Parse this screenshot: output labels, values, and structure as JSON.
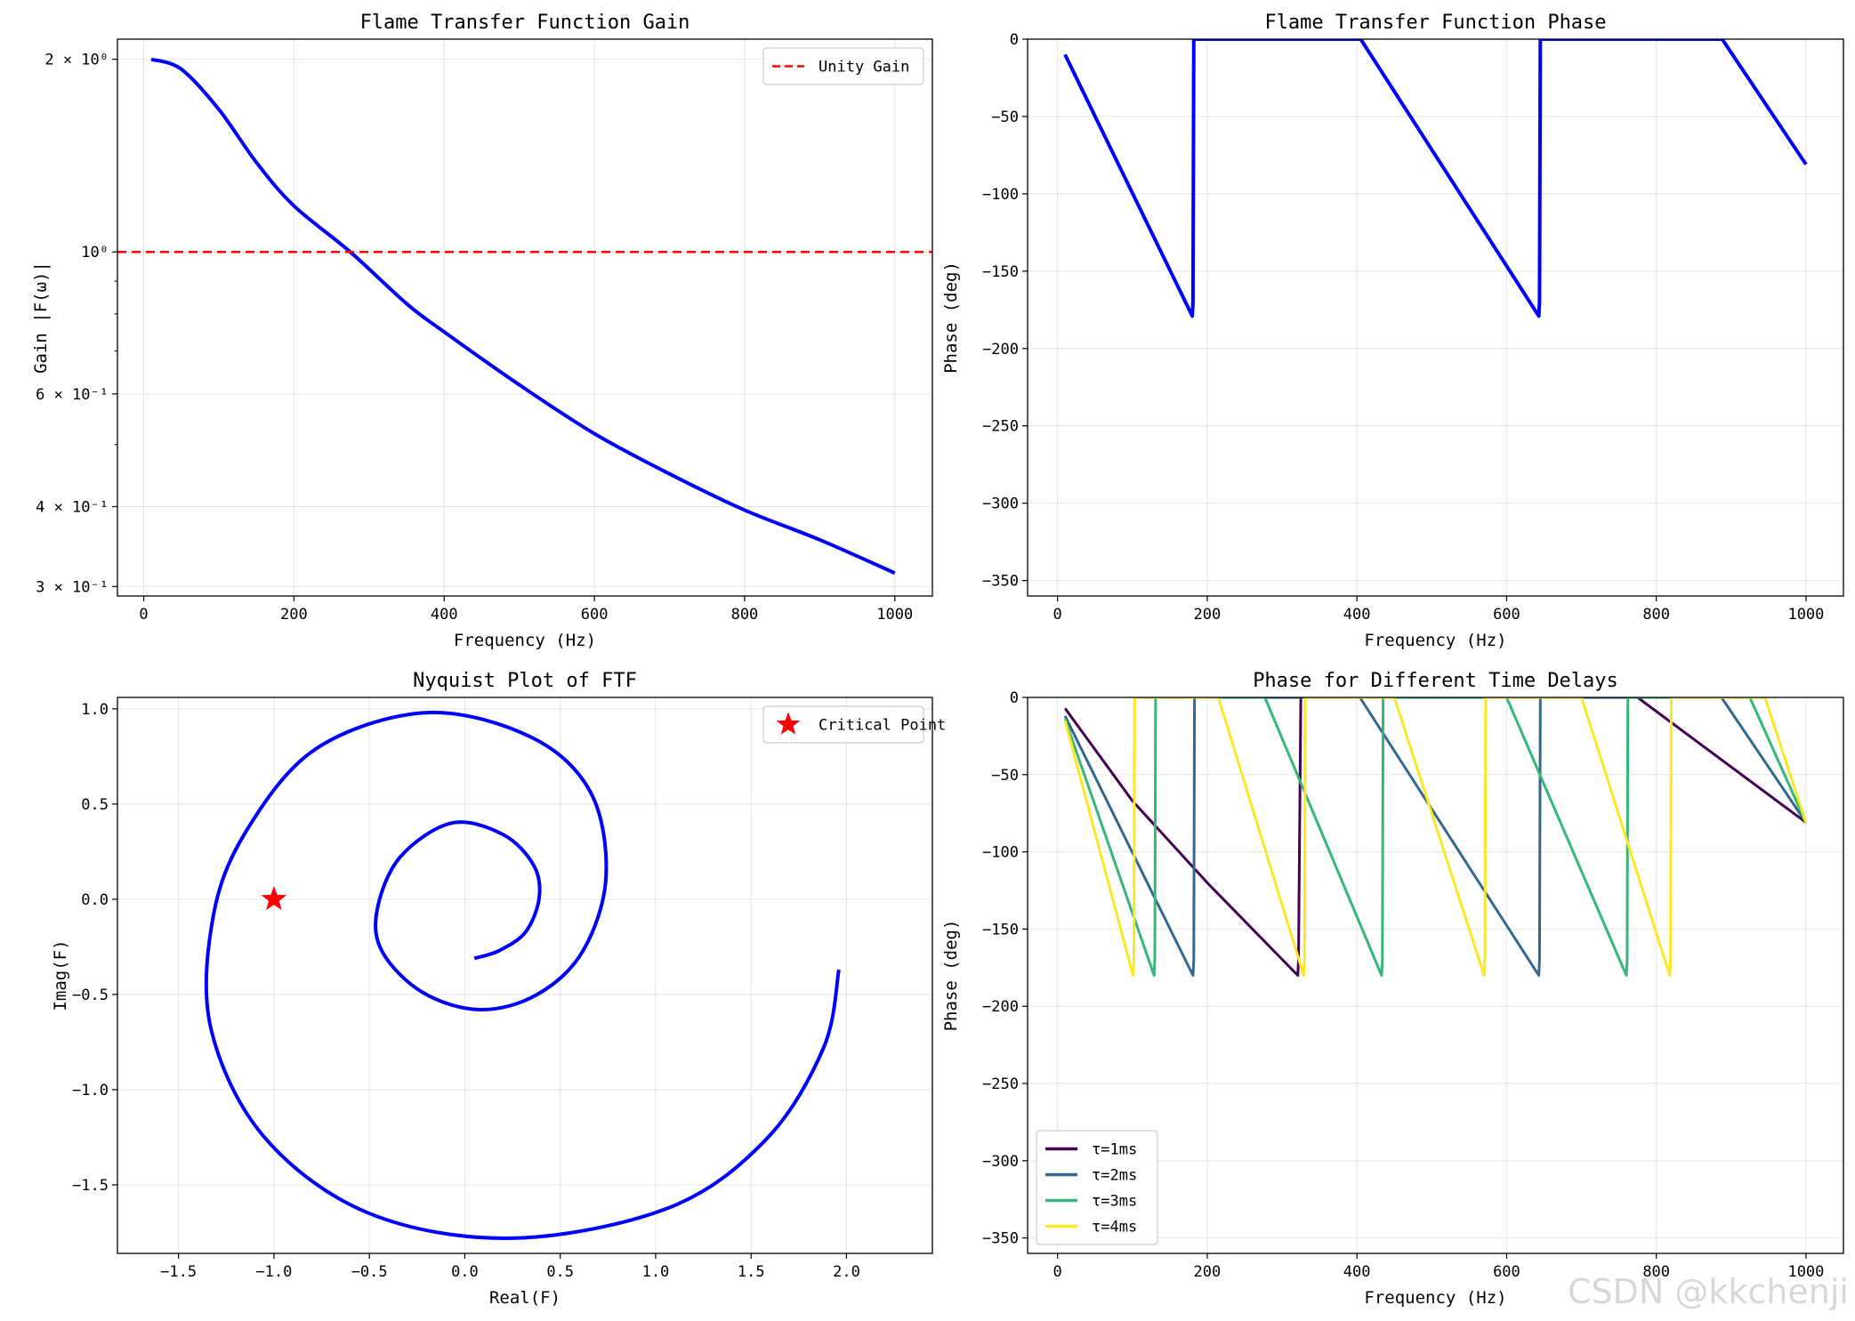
{
  "chart_data": [
    {
      "type": "line",
      "title": "Flame Transfer Function Gain",
      "xlabel": "Frequency (Hz)",
      "ylabel": "Gain |F(ω)|",
      "xlim": [
        -35,
        1050
      ],
      "ylim": [
        0.29,
        2.15
      ],
      "yscale": "log",
      "xticks": [
        0,
        200,
        400,
        600,
        800,
        1000
      ],
      "xtick_labels": [
        "0",
        "200",
        "400",
        "600",
        "800",
        "1000"
      ],
      "yticks": [
        2.0,
        1.0,
        0.6,
        0.4,
        0.3
      ],
      "ytick_labels": [
        "2 × 10⁰",
        "10⁰",
        "6 × 10⁻¹",
        "4 × 10⁻¹",
        "3 × 10⁻¹"
      ],
      "yminor": [
        0.5,
        0.7,
        0.8,
        0.9
      ],
      "series": [
        {
          "name": "Gain",
          "color": "#0000ff",
          "x": [
            10,
            50,
            100,
            150,
            200,
            275,
            350,
            400,
            500,
            600,
            700,
            800,
            900,
            1000
          ],
          "y": [
            2.0,
            1.93,
            1.67,
            1.38,
            1.18,
            1.0,
            0.83,
            0.75,
            0.62,
            0.52,
            0.45,
            0.395,
            0.355,
            0.315
          ]
        },
        {
          "name": "Unity Gain",
          "color": "#ff0000",
          "dashed": true,
          "hline": 1.0
        }
      ],
      "legend": [
        "Unity Gain"
      ],
      "legend_position": "top-right"
    },
    {
      "type": "line",
      "title": "Flame Transfer Function Phase",
      "xlabel": "Frequency (Hz)",
      "ylabel": "Phase (deg)",
      "xlim": [
        -40,
        1050
      ],
      "ylim": [
        -360,
        0
      ],
      "xticks": [
        0,
        200,
        400,
        600,
        800,
        1000
      ],
      "xtick_labels": [
        "0",
        "200",
        "400",
        "600",
        "800",
        "1000"
      ],
      "yticks": [
        0,
        -50,
        -100,
        -150,
        -200,
        -250,
        -300,
        -350
      ],
      "ytick_labels": [
        "0",
        "−50",
        "−100",
        "−150",
        "−200",
        "−250",
        "−300",
        "−350"
      ],
      "series": [
        {
          "name": "Phase",
          "color": "#0000ff",
          "x": [
            10,
            180,
            181,
            182,
            405,
            643,
            644,
            645,
            888,
            1000
          ],
          "y": [
            -10,
            -179,
            -170,
            0,
            0,
            -179,
            -170,
            0,
            0,
            -81
          ]
        }
      ]
    },
    {
      "type": "line",
      "title": "Nyquist Plot of FTF",
      "xlabel": "Real(F)",
      "ylabel": "Imag(F)",
      "xlim": [
        -1.82,
        2.45
      ],
      "ylim": [
        -1.86,
        1.06
      ],
      "xticks": [
        -1.5,
        -1.0,
        -0.5,
        0.0,
        0.5,
        1.0,
        1.5,
        2.0
      ],
      "xtick_labels": [
        "−1.5",
        "−1.0",
        "−0.5",
        "0.0",
        "0.5",
        "1.0",
        "1.5",
        "2.0"
      ],
      "yticks": [
        1.0,
        0.5,
        0.0,
        -0.5,
        -1.0,
        -1.5
      ],
      "ytick_labels": [
        "1.0",
        "0.5",
        "0.0",
        "−0.5",
        "−1.0",
        "−1.5"
      ],
      "series": [
        {
          "name": "FTF",
          "color": "#0000ff",
          "x": [
            1.96,
            1.88,
            1.58,
            1.07,
            0.25,
            -0.5,
            -1.05,
            -1.33,
            -1.32,
            -1.15,
            -0.78,
            -0.2,
            0.35,
            0.66,
            0.74,
            0.62,
            0.38,
            0.08,
            -0.22,
            -0.43,
            -0.46,
            -0.34,
            -0.07,
            0.2,
            0.36,
            0.39,
            0.32,
            0.18,
            0.05
          ],
          "y": [
            -0.37,
            -0.78,
            -1.26,
            -1.62,
            -1.78,
            -1.65,
            -1.25,
            -0.68,
            -0.1,
            0.35,
            0.79,
            0.98,
            0.85,
            0.56,
            0.12,
            -0.27,
            -0.5,
            -0.58,
            -0.49,
            -0.28,
            -0.06,
            0.22,
            0.4,
            0.34,
            0.18,
            0.01,
            -0.17,
            -0.27,
            -0.31
          ]
        },
        {
          "name": "Critical Point",
          "marker": "star",
          "color": "#ff0000",
          "x": [
            -1.0
          ],
          "y": [
            0.0
          ]
        }
      ],
      "legend": [
        "Critical Point"
      ],
      "legend_position": "top-right"
    },
    {
      "type": "line",
      "title": "Phase for Different Time Delays",
      "xlabel": "Frequency (Hz)",
      "ylabel": "Phase (deg)",
      "xlim": [
        -40,
        1050
      ],
      "ylim": [
        -360,
        0
      ],
      "xticks": [
        0,
        200,
        400,
        600,
        800,
        1000
      ],
      "xtick_labels": [
        "0",
        "200",
        "400",
        "600",
        "800",
        "1000"
      ],
      "yticks": [
        0,
        -50,
        -100,
        -150,
        -200,
        -250,
        -300,
        -350
      ],
      "ytick_labels": [
        "0",
        "−50",
        "−100",
        "−150",
        "−200",
        "−250",
        "−300",
        "−350"
      ],
      "series": [
        {
          "name": "τ=1ms",
          "color": "#440154",
          "x": [
            10,
            100,
            200,
            321,
            322,
            325,
            775,
            1000
          ],
          "y": [
            -7,
            -67,
            -120,
            -180,
            -170,
            0,
            0,
            -81
          ]
        },
        {
          "name": "τ=2ms",
          "color": "#31688e",
          "x": [
            10,
            181,
            182,
            183,
            404,
            643,
            644,
            645,
            887,
            1000
          ],
          "y": [
            -12,
            -180,
            -170,
            0,
            0,
            -180,
            -170,
            0,
            0,
            -81
          ]
        },
        {
          "name": "τ=3ms",
          "color": "#35b779",
          "x": [
            10,
            129,
            130,
            131,
            277,
            433,
            434,
            435,
            600,
            760,
            761,
            762,
            925,
            1000
          ],
          "y": [
            -14,
            -180,
            -170,
            0,
            0,
            -180,
            -170,
            0,
            0,
            -180,
            -170,
            0,
            0,
            -81
          ]
        },
        {
          "name": "τ=4ms",
          "color": "#fde725",
          "x": [
            10,
            101,
            102,
            103,
            215,
            329,
            330,
            331,
            450,
            570,
            571,
            572,
            700,
            818,
            819,
            820,
            945,
            1000
          ],
          "y": [
            -15,
            -180,
            -170,
            0,
            0,
            -180,
            -170,
            0,
            0,
            -180,
            -170,
            0,
            0,
            -180,
            -170,
            0,
            0,
            -81
          ]
        }
      ],
      "legend": [
        "τ=1ms",
        "τ=2ms",
        "τ=3ms",
        "τ=4ms"
      ],
      "legend_position": "bottom-left"
    }
  ],
  "watermark": "CSDN @kkchenji"
}
